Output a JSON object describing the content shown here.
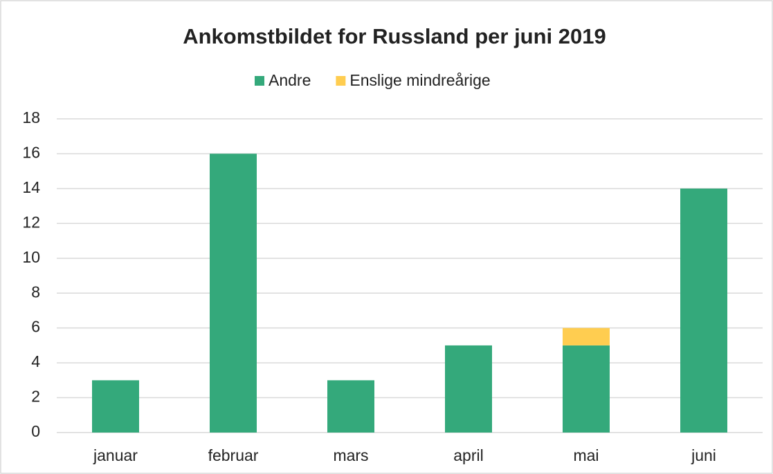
{
  "chart_data": {
    "type": "bar",
    "stacked": true,
    "title": "Ankomstbildet for Russland per juni 2019",
    "categories": [
      "januar",
      "februar",
      "mars",
      "april",
      "mai",
      "juni"
    ],
    "series": [
      {
        "name": "Andre",
        "color": "#34a97b",
        "values": [
          3,
          16,
          3,
          5,
          5,
          14
        ]
      },
      {
        "name": "Enslige mindreårige",
        "color": "#ffcd50",
        "values": [
          0,
          0,
          0,
          0,
          1,
          0
        ]
      }
    ],
    "ylim": [
      0,
      18
    ],
    "yticks": [
      0,
      2,
      4,
      6,
      8,
      10,
      12,
      14,
      16,
      18
    ],
    "grid": true,
    "legend": "top"
  }
}
